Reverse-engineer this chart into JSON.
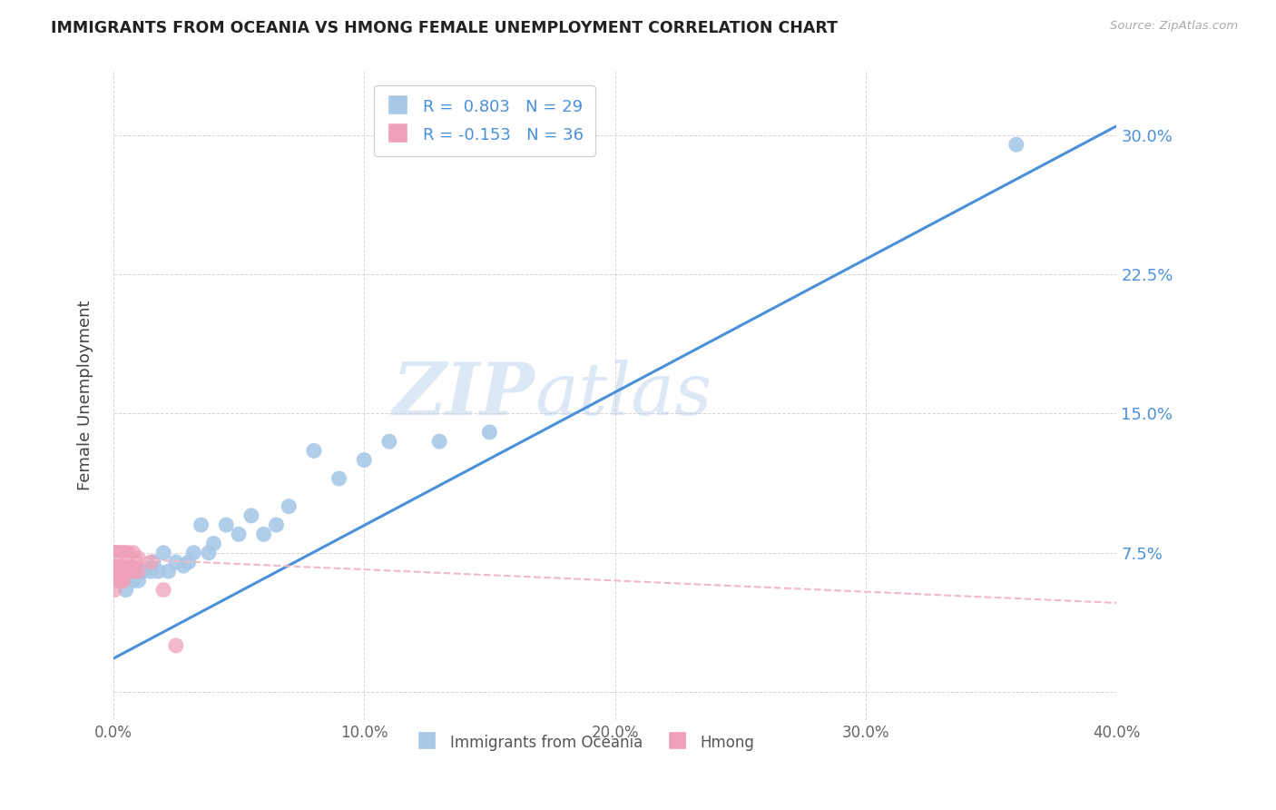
{
  "title": "IMMIGRANTS FROM OCEANIA VS HMONG FEMALE UNEMPLOYMENT CORRELATION CHART",
  "source": "Source: ZipAtlas.com",
  "ylabel": "Female Unemployment",
  "x_min": 0.0,
  "x_max": 0.4,
  "y_min": -0.015,
  "y_max": 0.335,
  "yticks": [
    0.0,
    0.075,
    0.15,
    0.225,
    0.3
  ],
  "ytick_labels": [
    "",
    "7.5%",
    "15.0%",
    "22.5%",
    "30.0%"
  ],
  "xticks": [
    0.0,
    0.1,
    0.2,
    0.3,
    0.4
  ],
  "xtick_labels": [
    "0.0%",
    "10.0%",
    "20.0%",
    "30.0%",
    "40.0%"
  ],
  "oceania_x": [
    0.005,
    0.008,
    0.01,
    0.012,
    0.015,
    0.016,
    0.018,
    0.02,
    0.022,
    0.025,
    0.028,
    0.03,
    0.032,
    0.035,
    0.038,
    0.04,
    0.045,
    0.05,
    0.055,
    0.06,
    0.065,
    0.07,
    0.08,
    0.09,
    0.1,
    0.11,
    0.13,
    0.15,
    0.36
  ],
  "oceania_y": [
    0.055,
    0.06,
    0.06,
    0.065,
    0.065,
    0.07,
    0.065,
    0.075,
    0.065,
    0.07,
    0.068,
    0.07,
    0.075,
    0.09,
    0.075,
    0.08,
    0.09,
    0.085,
    0.095,
    0.085,
    0.09,
    0.1,
    0.13,
    0.115,
    0.125,
    0.135,
    0.135,
    0.14,
    0.295
  ],
  "hmong_x": [
    0.0005,
    0.0005,
    0.0008,
    0.001,
    0.001,
    0.001,
    0.0015,
    0.0015,
    0.002,
    0.002,
    0.002,
    0.002,
    0.003,
    0.003,
    0.003,
    0.003,
    0.003,
    0.004,
    0.004,
    0.004,
    0.004,
    0.005,
    0.005,
    0.005,
    0.006,
    0.006,
    0.006,
    0.007,
    0.008,
    0.008,
    0.009,
    0.01,
    0.01,
    0.015,
    0.02,
    0.025
  ],
  "hmong_y": [
    0.055,
    0.075,
    0.07,
    0.065,
    0.07,
    0.075,
    0.065,
    0.075,
    0.06,
    0.065,
    0.07,
    0.075,
    0.06,
    0.065,
    0.07,
    0.072,
    0.075,
    0.06,
    0.065,
    0.07,
    0.075,
    0.065,
    0.07,
    0.075,
    0.065,
    0.07,
    0.075,
    0.07,
    0.065,
    0.075,
    0.07,
    0.065,
    0.072,
    0.07,
    0.055,
    0.025
  ],
  "oceania_color": "#a8c8e8",
  "hmong_color": "#f0a0b8",
  "trend_oceania_color": "#4a90d9",
  "trend_hmong_color": "#f0b8c8",
  "background_color": "#ffffff",
  "grid_color": "#cccccc",
  "watermark_zip": "ZIP",
  "watermark_atlas": "atlas",
  "watermark_color": "#dce8f5",
  "oceania_trend_x": [
    0.0,
    0.4
  ],
  "oceania_trend_y": [
    0.018,
    0.305
  ],
  "hmong_trend_x": [
    0.0,
    0.4
  ],
  "hmong_trend_y": [
    0.072,
    0.048
  ]
}
